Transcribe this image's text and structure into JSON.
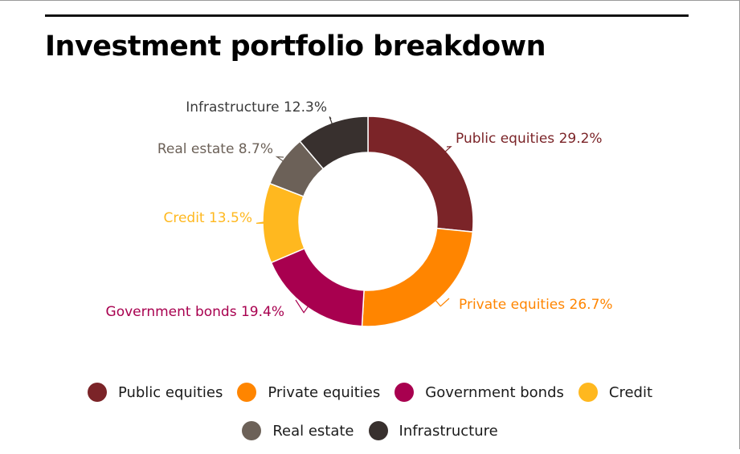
{
  "chart_data": {
    "type": "pie",
    "variant": "donut",
    "title": "Investment portfolio breakdown",
    "categories": [
      "Public equities",
      "Private equities",
      "Government bonds",
      "Credit",
      "Real estate",
      "Infrastructure"
    ],
    "values": [
      29.2,
      26.7,
      19.4,
      13.5,
      8.7,
      12.3
    ],
    "unit": "%",
    "labels": [
      "Public equities 29.2%",
      "Private equities 26.7%",
      "Government bonds 19.4%",
      "Credit 13.5%",
      "Real estate 8.7%",
      "Infrastructure 12.3%"
    ],
    "colors": [
      "#7b2428",
      "#ff8500",
      "#a8004f",
      "#ffb81f",
      "#6c6158",
      "#38302e"
    ],
    "legend_position": "bottom"
  }
}
